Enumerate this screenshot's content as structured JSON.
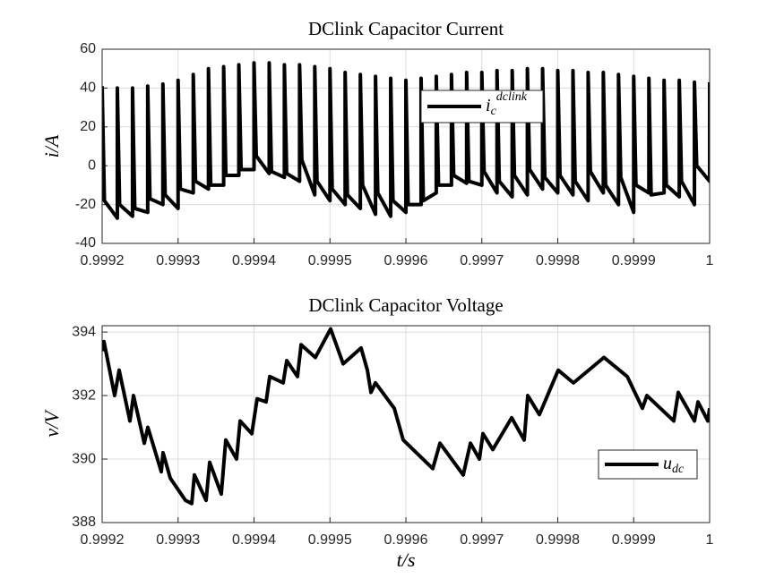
{
  "chart_data": [
    {
      "type": "line",
      "title": "DClink Capacitor Current",
      "ylabel": "i/A",
      "xlim": [
        0.9992,
        1
      ],
      "xticks": [
        0.9992,
        0.9993,
        0.9994,
        0.9995,
        0.9996,
        0.9997,
        0.9998,
        0.9999,
        1
      ],
      "ylim": [
        -40,
        60
      ],
      "yticks": [
        -40,
        -20,
        0,
        20,
        40,
        60
      ],
      "grid": true,
      "legend": "northeast",
      "x": [
        0.9992,
        0.999203,
        0.99922,
        0.99922,
        0.999223,
        0.99924,
        0.99924,
        0.999243,
        0.99926,
        0.99926,
        0.999263,
        0.99928,
        0.99928,
        0.999283,
        0.9993,
        0.9993,
        0.999303,
        0.99932,
        0.99932,
        0.999323,
        0.99934,
        0.99934,
        0.999343,
        0.99936,
        0.99936,
        0.999363,
        0.99938,
        0.99938,
        0.999383,
        0.9994,
        0.9994,
        0.999403,
        0.99942,
        0.99942,
        0.999423,
        0.99944,
        0.99944,
        0.999443,
        0.99946,
        0.99946,
        0.999463,
        0.99948,
        0.99948,
        0.999483,
        0.9995,
        0.9995,
        0.999503,
        0.99952,
        0.99952,
        0.999523,
        0.99954,
        0.99954,
        0.999543,
        0.99956,
        0.99956,
        0.999563,
        0.99958,
        0.99958,
        0.999583,
        0.9996,
        0.9996,
        0.999603,
        0.99962,
        0.99962,
        0.999623,
        0.99964,
        0.99964,
        0.999643,
        0.99966,
        0.99966,
        0.999663,
        0.99968,
        0.99968,
        0.999683,
        0.9997,
        0.9997,
        0.999703,
        0.99972,
        0.99972,
        0.999723,
        0.99974,
        0.99974,
        0.999743,
        0.99976,
        0.99976,
        0.999763,
        0.99978,
        0.99978,
        0.999783,
        0.9998,
        0.9998,
        0.999803,
        0.99982,
        0.99982,
        0.999823,
        0.99984,
        0.99984,
        0.999843,
        0.99986,
        0.99986,
        0.999863,
        0.99988,
        0.99988,
        0.999883,
        0.9999,
        0.9999,
        0.999903,
        0.99992,
        0.99992,
        0.999923,
        0.99994,
        0.99994,
        0.999943,
        0.99996,
        0.99996,
        0.999963,
        0.99998,
        0.99998,
        0.999983,
        1,
        1
      ],
      "series": [
        {
          "name": "i_c^dclink",
          "color": "#000000",
          "values": [
            41,
            -18,
            -27,
            40,
            -20,
            -26,
            40,
            -22,
            -24,
            41,
            -17,
            -20,
            42,
            -15,
            -22,
            44,
            -12,
            -14,
            47,
            -8,
            -12,
            50,
            -10,
            -10,
            51,
            -5,
            -5,
            52,
            -2,
            -2,
            53,
            5,
            -4,
            53,
            -3,
            -6,
            52,
            -4,
            -8,
            52,
            3,
            -15,
            51,
            -8,
            -18,
            50,
            -12,
            -20,
            48,
            -15,
            -22,
            47,
            -10,
            -25,
            46,
            -14,
            -26,
            45,
            -18,
            -24,
            44,
            -20,
            -20,
            45,
            -18,
            -14,
            46,
            -10,
            -10,
            47,
            -5,
            -9,
            48,
            -8,
            -10,
            48,
            -3,
            -14,
            49,
            -8,
            -16,
            49,
            -5,
            -15,
            50,
            -2,
            -12,
            50,
            -6,
            -14,
            49,
            -5,
            -15,
            49,
            -8,
            -18,
            48,
            -3,
            -14,
            48,
            -10,
            -20,
            47,
            -6,
            -24,
            46,
            -10,
            -14,
            45,
            -15,
            -14,
            44,
            -10,
            -16,
            44,
            -8,
            -20,
            43,
            0,
            -8,
            43
          ]
        }
      ]
    },
    {
      "type": "line",
      "title": "DClink Capacitor Voltage",
      "ylabel": "v/V",
      "xlabel": "t/s",
      "xlim": [
        0.9992,
        1
      ],
      "xticks": [
        0.9992,
        0.9993,
        0.9994,
        0.9995,
        0.9996,
        0.9997,
        0.9998,
        0.9999,
        1
      ],
      "ylim": [
        388,
        394.2
      ],
      "yticks": [
        388,
        390,
        392,
        394
      ],
      "grid": true,
      "legend": "southeast",
      "x": [
        0.9992,
        0.9992024,
        0.9992165,
        0.9992224,
        0.9992366,
        0.9992413,
        0.9992555,
        0.9992602,
        0.9992779,
        0.9992802,
        0.9992897,
        0.9993097,
        0.999318,
        0.9993215,
        0.9993369,
        0.9993416,
        0.9993569,
        0.9993628,
        0.999377,
        0.9993817,
        0.9993971,
        0.9994041,
        0.9994159,
        0.9994207,
        0.9994384,
        0.9994431,
        0.9994572,
        0.999462,
        0.9994808,
        0.9995009,
        0.9995174,
        0.999541,
        0.9995493,
        0.999554,
        0.9995599,
        0.9995847,
        0.9995965,
        0.9996354,
        0.9996449,
        0.9996755,
        0.999685,
        0.9996968,
        0.9997015,
        0.9997145,
        0.9997393,
        0.9997558,
        0.9997605,
        0.9997758,
        0.9998006,
        0.9998207,
        0.9998608,
        0.9998915,
        0.9999115,
        0.9999174,
        0.9999528,
        0.9999587,
        0.99998,
        0.9999847,
        0.9999977,
        1
      ],
      "series": [
        {
          "name": "u_dc",
          "color": "#000000",
          "values": [
            393.4,
            393.7,
            392.0,
            392.8,
            391.2,
            392.0,
            390.5,
            391.0,
            389.6,
            390.2,
            389.4,
            388.7,
            388.6,
            389.5,
            388.7,
            389.9,
            388.9,
            390.6,
            390.0,
            391.2,
            390.8,
            391.9,
            391.8,
            392.6,
            392.4,
            393.1,
            392.6,
            393.6,
            393.2,
            394.1,
            393.0,
            393.5,
            392.8,
            392.1,
            392.4,
            391.6,
            390.6,
            389.7,
            390.5,
            389.5,
            390.5,
            390.0,
            390.8,
            390.3,
            391.3,
            390.6,
            392.0,
            391.4,
            392.8,
            392.4,
            393.2,
            392.6,
            391.6,
            392.0,
            391.2,
            392.1,
            391.2,
            391.8,
            391.2,
            391.6
          ]
        }
      ]
    }
  ]
}
